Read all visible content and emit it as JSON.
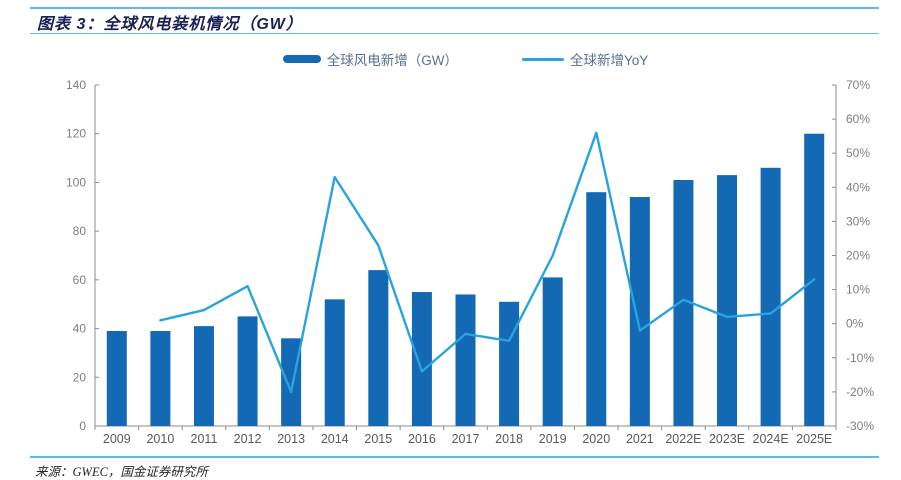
{
  "header": {
    "title": "图表 3：全球风电装机情况（GW）"
  },
  "legend": {
    "items": [
      {
        "label": "全球风电新增（GW）",
        "marker": "bar-swatch"
      },
      {
        "label": "全球新增YoY",
        "marker": "line-swatch"
      }
    ]
  },
  "footer": {
    "source": "来源：GWEC，国金证券研究所"
  },
  "colors": {
    "bar": "#1469B4",
    "line": "#29A3DF",
    "rule": "#5BBCEA",
    "title": "#1A2153",
    "axis": "#8C8C8C",
    "tick_label": "#7F7F7F",
    "x_label": "#595959",
    "legend_text": "#56708F"
  },
  "chart_data": {
    "type": "bar",
    "subtype": "bar-line-combo",
    "title": "全球风电装机情况（GW）",
    "categories": [
      "2009",
      "2010",
      "2011",
      "2012",
      "2013",
      "2014",
      "2015",
      "2016",
      "2017",
      "2018",
      "2019",
      "2020",
      "2021",
      "2022E",
      "2023E",
      "2024E",
      "2025E"
    ],
    "series": [
      {
        "name": "全球风电新增（GW）",
        "type": "bar",
        "axis": "left",
        "values": [
          39,
          39,
          41,
          45,
          36,
          52,
          64,
          55,
          54,
          51,
          61,
          96,
          94,
          101,
          103,
          106,
          120
        ]
      },
      {
        "name": "全球新增YoY",
        "type": "line",
        "axis": "right",
        "unit": "%",
        "values": [
          null,
          1,
          4,
          11,
          -20,
          43,
          23,
          -14,
          -3,
          -5,
          20,
          56,
          -2,
          7,
          2,
          3,
          13
        ]
      }
    ],
    "left_axis": {
      "min": 0,
      "max": 140,
      "step": 20
    },
    "right_axis": {
      "min": -30,
      "max": 70,
      "step": 10,
      "format": "percent"
    },
    "grid": false,
    "legend_position": "top"
  }
}
